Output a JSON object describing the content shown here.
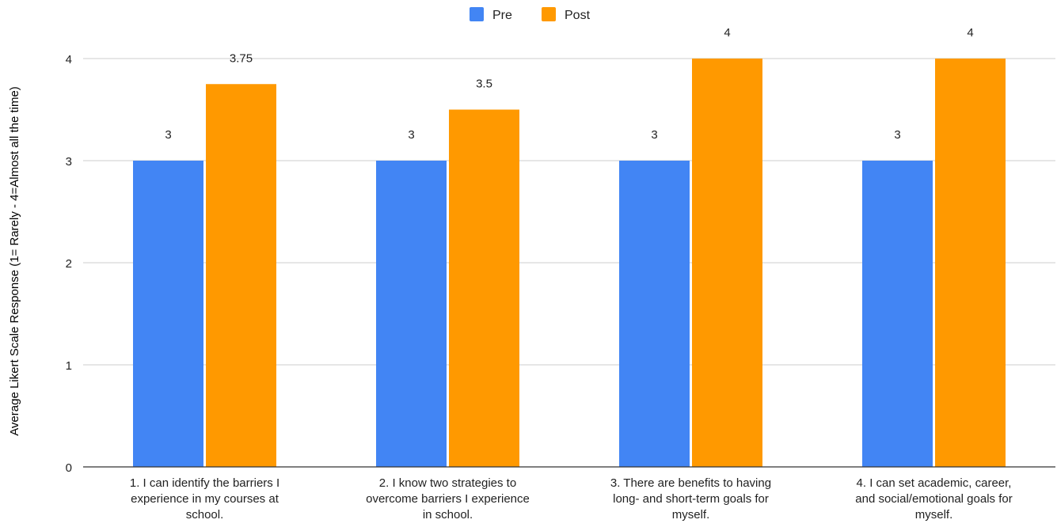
{
  "colors": {
    "pre": "#4285F4",
    "post": "#FF9900",
    "gridline": "#cccccc",
    "axis": "#333333",
    "text": "#222222"
  },
  "chart_data": {
    "type": "bar",
    "title": "",
    "xlabel": "",
    "ylabel": "Average Likert Scale Response (1= Rarely - 4=Almost all the time)",
    "ylim": [
      0,
      4
    ],
    "yticks": [
      0,
      1,
      2,
      3,
      4
    ],
    "grid": true,
    "legend_position": "top-center",
    "categories": [
      [
        "1. I can identify the barriers I",
        "experience in my courses at",
        "school."
      ],
      [
        "2. I know two strategies to",
        "overcome barriers I experience",
        "in school."
      ],
      [
        "3. There are benefits to having",
        "long- and short-term goals for",
        "myself."
      ],
      [
        "4. I can set academic, career,",
        "and social/emotional goals for",
        "myself."
      ]
    ],
    "series": [
      {
        "name": "Pre",
        "color": "#4285F4",
        "values": [
          3,
          3,
          3,
          3
        ],
        "labels": [
          "3",
          "3",
          "3",
          "3"
        ]
      },
      {
        "name": "Post",
        "color": "#FF9900",
        "values": [
          3.75,
          3.5,
          4,
          4
        ],
        "labels": [
          "3.75",
          "3.5",
          "4",
          "4"
        ]
      }
    ]
  }
}
